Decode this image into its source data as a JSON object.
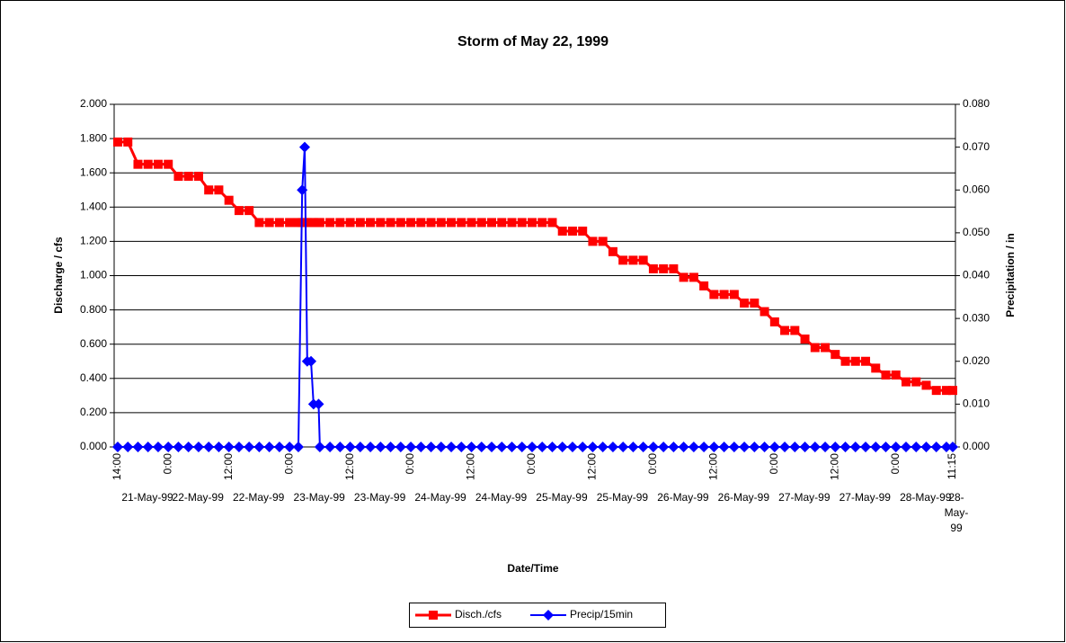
{
  "chart_data": {
    "type": "line",
    "title": "Storm of May 22, 1999",
    "x_label": "Date/Time",
    "y_label": "Discharge / cfs",
    "y2_label": "Precipitation / in",
    "x": [
      "1999-05-21 14:00",
      "1999-05-21 16:00",
      "1999-05-21 18:00",
      "1999-05-21 20:00",
      "1999-05-21 22:00",
      "1999-05-22 00:00",
      "1999-05-22 02:00",
      "1999-05-22 04:00",
      "1999-05-22 06:00",
      "1999-05-22 08:00",
      "1999-05-22 10:00",
      "1999-05-22 12:00",
      "1999-05-22 14:00",
      "1999-05-22 16:00",
      "1999-05-22 18:00",
      "1999-05-22 20:00",
      "1999-05-22 22:00",
      "1999-05-23 00:00",
      "1999-05-23 01:45",
      "1999-05-23 02:30",
      "1999-05-23 03:00",
      "1999-05-23 03:30",
      "1999-05-23 04:15",
      "1999-05-23 04:45",
      "1999-05-23 05:45",
      "1999-05-23 06:00",
      "1999-05-23 08:00",
      "1999-05-23 10:00",
      "1999-05-23 12:00",
      "1999-05-23 14:00",
      "1999-05-23 16:00",
      "1999-05-23 18:00",
      "1999-05-23 20:00",
      "1999-05-23 22:00",
      "1999-05-24 00:00",
      "1999-05-24 02:00",
      "1999-05-24 04:00",
      "1999-05-24 06:00",
      "1999-05-24 08:00",
      "1999-05-24 10:00",
      "1999-05-24 12:00",
      "1999-05-24 14:00",
      "1999-05-24 16:00",
      "1999-05-24 18:00",
      "1999-05-24 20:00",
      "1999-05-24 22:00",
      "1999-05-25 00:00",
      "1999-05-25 02:00",
      "1999-05-25 04:00",
      "1999-05-25 06:00",
      "1999-05-25 08:00",
      "1999-05-25 10:00",
      "1999-05-25 12:00",
      "1999-05-25 14:00",
      "1999-05-25 16:00",
      "1999-05-25 18:00",
      "1999-05-25 20:00",
      "1999-05-25 22:00",
      "1999-05-26 00:00",
      "1999-05-26 02:00",
      "1999-05-26 04:00",
      "1999-05-26 06:00",
      "1999-05-26 08:00",
      "1999-05-26 10:00",
      "1999-05-26 12:00",
      "1999-05-26 14:00",
      "1999-05-26 16:00",
      "1999-05-26 18:00",
      "1999-05-26 20:00",
      "1999-05-26 22:00",
      "1999-05-27 00:00",
      "1999-05-27 02:00",
      "1999-05-27 04:00",
      "1999-05-27 06:00",
      "1999-05-27 08:00",
      "1999-05-27 10:00",
      "1999-05-27 12:00",
      "1999-05-27 14:00",
      "1999-05-27 16:00",
      "1999-05-27 18:00",
      "1999-05-27 20:00",
      "1999-05-27 22:00",
      "1999-05-28 00:00",
      "1999-05-28 02:00",
      "1999-05-28 04:00",
      "1999-05-28 06:00",
      "1999-05-28 08:00",
      "1999-05-28 10:00",
      "1999-05-28 11:15"
    ],
    "series": [
      {
        "name": "Disch./cfs",
        "color": "#ff0000",
        "marker": "square",
        "axis": "y",
        "values": [
          1.78,
          1.78,
          1.65,
          1.65,
          1.65,
          1.65,
          1.58,
          1.58,
          1.58,
          1.5,
          1.5,
          1.44,
          1.38,
          1.38,
          1.31,
          1.31,
          1.31,
          1.31,
          1.31,
          1.31,
          1.31,
          1.31,
          1.31,
          1.31,
          1.31,
          1.31,
          1.31,
          1.31,
          1.31,
          1.31,
          1.31,
          1.31,
          1.31,
          1.31,
          1.31,
          1.31,
          1.31,
          1.31,
          1.31,
          1.31,
          1.31,
          1.31,
          1.31,
          1.31,
          1.31,
          1.31,
          1.31,
          1.31,
          1.31,
          1.26,
          1.26,
          1.26,
          1.2,
          1.2,
          1.14,
          1.09,
          1.09,
          1.09,
          1.04,
          1.04,
          1.04,
          0.99,
          0.99,
          0.94,
          0.89,
          0.89,
          0.89,
          0.84,
          0.84,
          0.79,
          0.73,
          0.68,
          0.68,
          0.63,
          0.58,
          0.58,
          0.54,
          0.5,
          0.5,
          0.5,
          0.46,
          0.42,
          0.42,
          0.38,
          0.38,
          0.36,
          0.33,
          0.33,
          0.33
        ]
      },
      {
        "name": "Precip/15min",
        "color": "#0000ff",
        "marker": "diamond",
        "axis": "y2",
        "values": [
          0,
          0,
          0,
          0,
          0,
          0,
          0,
          0,
          0,
          0,
          0,
          0,
          0,
          0,
          0,
          0,
          0,
          0,
          0,
          0.06,
          0.07,
          0.02,
          0.02,
          0.01,
          0.01,
          0,
          0,
          0,
          0,
          0,
          0,
          0,
          0,
          0,
          0,
          0,
          0,
          0,
          0,
          0,
          0,
          0,
          0,
          0,
          0,
          0,
          0,
          0,
          0,
          0,
          0,
          0,
          0,
          0,
          0,
          0,
          0,
          0,
          0,
          0,
          0,
          0,
          0,
          0,
          0,
          0,
          0,
          0,
          0,
          0,
          0,
          0,
          0,
          0,
          0,
          0,
          0,
          0,
          0,
          0,
          0,
          0,
          0,
          0,
          0,
          0,
          0,
          0,
          0
        ]
      }
    ],
    "xlim": [
      "1999-05-21 14:00",
      "1999-05-28 11:15"
    ],
    "xticks": [
      {
        "value": "1999-05-21 14:00",
        "label": "14:00",
        "date": "21-May-99"
      },
      {
        "value": "1999-05-22 00:00",
        "label": "0:00",
        "date": "22-May-99"
      },
      {
        "value": "1999-05-22 12:00",
        "label": "12:00",
        "date": "22-May-99"
      },
      {
        "value": "1999-05-23 00:00",
        "label": "0:00",
        "date": "23-May-99"
      },
      {
        "value": "1999-05-23 12:00",
        "label": "12:00",
        "date": "23-May-99"
      },
      {
        "value": "1999-05-24 00:00",
        "label": "0:00",
        "date": "24-May-99"
      },
      {
        "value": "1999-05-24 12:00",
        "label": "12:00",
        "date": "24-May-99"
      },
      {
        "value": "1999-05-25 00:00",
        "label": "0:00",
        "date": "25-May-99"
      },
      {
        "value": "1999-05-25 12:00",
        "label": "12:00",
        "date": "25-May-99"
      },
      {
        "value": "1999-05-26 00:00",
        "label": "0:00",
        "date": "26-May-99"
      },
      {
        "value": "1999-05-26 12:00",
        "label": "12:00",
        "date": "26-May-99"
      },
      {
        "value": "1999-05-27 00:00",
        "label": "0:00",
        "date": "27-May-99"
      },
      {
        "value": "1999-05-27 12:00",
        "label": "12:00",
        "date": "27-May-99"
      },
      {
        "value": "1999-05-28 00:00",
        "label": "0:00",
        "date": "28-May-99"
      },
      {
        "value": "1999-05-28 11:15",
        "label": "11:15",
        "date": "28-May-99"
      }
    ],
    "ylim": [
      0,
      2
    ],
    "yticks": [
      {
        "value": 0,
        "label": "0.000"
      },
      {
        "value": 0.2,
        "label": "0.200"
      },
      {
        "value": 0.4,
        "label": "0.400"
      },
      {
        "value": 0.6,
        "label": "0.600"
      },
      {
        "value": 0.8,
        "label": "0.800"
      },
      {
        "value": 1,
        "label": "1.000"
      },
      {
        "value": 1.2,
        "label": "1.200"
      },
      {
        "value": 1.4,
        "label": "1.400"
      },
      {
        "value": 1.6,
        "label": "1.600"
      },
      {
        "value": 1.8,
        "label": "1.800"
      },
      {
        "value": 2,
        "label": "2.000"
      }
    ],
    "y2lim": [
      0,
      0.08
    ],
    "y2ticks": [
      {
        "value": 0,
        "label": "0.000"
      },
      {
        "value": 0.01,
        "label": "0.010"
      },
      {
        "value": 0.02,
        "label": "0.020"
      },
      {
        "value": 0.03,
        "label": "0.030"
      },
      {
        "value": 0.04,
        "label": "0.040"
      },
      {
        "value": 0.05,
        "label": "0.050"
      },
      {
        "value": 0.06,
        "label": "0.060"
      },
      {
        "value": 0.07,
        "label": "0.070"
      },
      {
        "value": 0.08,
        "label": "0.080"
      }
    ],
    "grid": true,
    "legend": "bottom"
  }
}
